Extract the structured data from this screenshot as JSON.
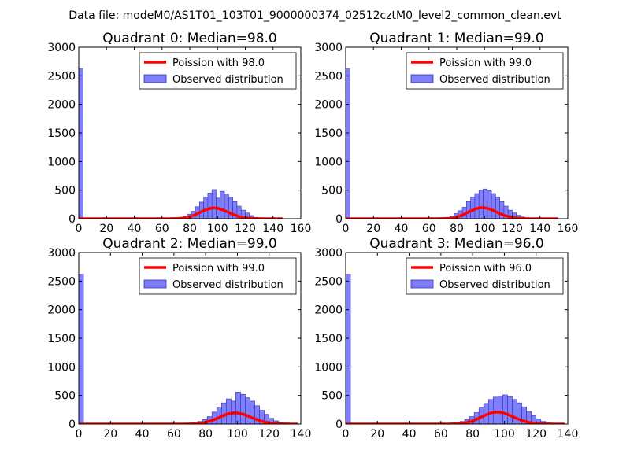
{
  "suptitle": "Data file: modeM0/AS1T01_103T01_9000000374_02512cztM0_level2_common_clean.evt",
  "colors": {
    "bar_fill": "#7f7ffe",
    "bar_edge": "#3333aa",
    "poisson_line": "#ff0000",
    "background": "#ffffff"
  },
  "chart_data": [
    {
      "type": "bar",
      "title": "Quadrant 0: Median=98.0",
      "xlim": [
        0,
        160
      ],
      "ylim": [
        0,
        3000
      ],
      "xticks": [
        "0",
        "20",
        "40",
        "60",
        "80",
        "100",
        "120",
        "140",
        "160"
      ],
      "yticks": [
        "0",
        "500",
        "1000",
        "1500",
        "2000",
        "2500",
        "3000"
      ],
      "median": 98.0,
      "bin_width": 3,
      "legend": {
        "line_label": "Poission with 98.0",
        "bar_label": "Observed distribution",
        "position": "upper right"
      },
      "bars": [
        [
          0,
          2620
        ],
        [
          69,
          15
        ],
        [
          72,
          25
        ],
        [
          75,
          40
        ],
        [
          78,
          80
        ],
        [
          81,
          130
        ],
        [
          84,
          210
        ],
        [
          87,
          290
        ],
        [
          90,
          380
        ],
        [
          93,
          450
        ],
        [
          96,
          510
        ],
        [
          99,
          360
        ],
        [
          102,
          480
        ],
        [
          105,
          430
        ],
        [
          108,
          380
        ],
        [
          111,
          300
        ],
        [
          114,
          220
        ],
        [
          117,
          150
        ],
        [
          120,
          100
        ],
        [
          123,
          55
        ],
        [
          126,
          25
        ],
        [
          129,
          10
        ]
      ],
      "poisson_end": 147
    },
    {
      "type": "bar",
      "title": "Quadrant 1: Median=99.0",
      "xlim": [
        0,
        160
      ],
      "ylim": [
        0,
        3000
      ],
      "xticks": [
        "0",
        "20",
        "40",
        "60",
        "80",
        "100",
        "120",
        "140",
        "160"
      ],
      "yticks": [
        "0",
        "500",
        "1000",
        "1500",
        "2000",
        "2500",
        "3000"
      ],
      "median": 99.0,
      "bin_width": 3,
      "legend": {
        "line_label": "Poission with 99.0",
        "bar_label": "Observed distribution",
        "position": "upper right"
      },
      "bars": [
        [
          0,
          2620
        ],
        [
          72,
          20
        ],
        [
          75,
          50
        ],
        [
          78,
          90
        ],
        [
          81,
          140
        ],
        [
          84,
          200
        ],
        [
          87,
          300
        ],
        [
          90,
          380
        ],
        [
          93,
          440
        ],
        [
          96,
          500
        ],
        [
          99,
          520
        ],
        [
          102,
          490
        ],
        [
          105,
          440
        ],
        [
          108,
          380
        ],
        [
          111,
          300
        ],
        [
          114,
          220
        ],
        [
          117,
          150
        ],
        [
          120,
          100
        ],
        [
          123,
          60
        ],
        [
          126,
          30
        ],
        [
          129,
          12
        ]
      ],
      "poisson_end": 153
    },
    {
      "type": "bar",
      "title": "Quadrant 2: Median=99.0",
      "xlim": [
        0,
        140
      ],
      "ylim": [
        0,
        3000
      ],
      "xticks": [
        "0",
        "20",
        "40",
        "60",
        "80",
        "100",
        "120",
        "140"
      ],
      "yticks": [
        "0",
        "500",
        "1000",
        "1500",
        "2000",
        "2500",
        "3000"
      ],
      "median": 99.0,
      "bin_width": 3,
      "legend": {
        "line_label": "Poission with 99.0",
        "bar_label": "Observed distribution",
        "position": "upper right"
      },
      "bars": [
        [
          0,
          2620
        ],
        [
          72,
          20
        ],
        [
          75,
          45
        ],
        [
          78,
          80
        ],
        [
          81,
          130
        ],
        [
          84,
          210
        ],
        [
          87,
          280
        ],
        [
          90,
          370
        ],
        [
          93,
          440
        ],
        [
          96,
          400
        ],
        [
          99,
          560
        ],
        [
          102,
          520
        ],
        [
          105,
          460
        ],
        [
          108,
          400
        ],
        [
          111,
          320
        ],
        [
          114,
          240
        ],
        [
          117,
          170
        ],
        [
          120,
          100
        ],
        [
          123,
          55
        ],
        [
          126,
          25
        ],
        [
          129,
          10
        ]
      ],
      "poisson_end": 138
    },
    {
      "type": "bar",
      "title": "Quadrant 3: Median=96.0",
      "xlim": [
        0,
        140
      ],
      "ylim": [
        0,
        3000
      ],
      "xticks": [
        "0",
        "20",
        "40",
        "60",
        "80",
        "100",
        "120",
        "140"
      ],
      "yticks": [
        "0",
        "500",
        "1000",
        "1500",
        "2000",
        "2500",
        "3000"
      ],
      "median": 96.0,
      "bin_width": 3,
      "legend": {
        "line_label": "Poission with 96.0",
        "bar_label": "Observed distribution",
        "position": "upper right"
      },
      "bars": [
        [
          0,
          2620
        ],
        [
          69,
          20
        ],
        [
          72,
          45
        ],
        [
          75,
          80
        ],
        [
          78,
          130
        ],
        [
          81,
          200
        ],
        [
          84,
          280
        ],
        [
          87,
          360
        ],
        [
          90,
          430
        ],
        [
          93,
          470
        ],
        [
          96,
          490
        ],
        [
          99,
          510
        ],
        [
          102,
          480
        ],
        [
          105,
          430
        ],
        [
          108,
          370
        ],
        [
          111,
          300
        ],
        [
          114,
          220
        ],
        [
          117,
          150
        ],
        [
          120,
          90
        ],
        [
          123,
          45
        ],
        [
          126,
          20
        ],
        [
          129,
          8
        ]
      ],
      "poisson_end": 138
    }
  ]
}
